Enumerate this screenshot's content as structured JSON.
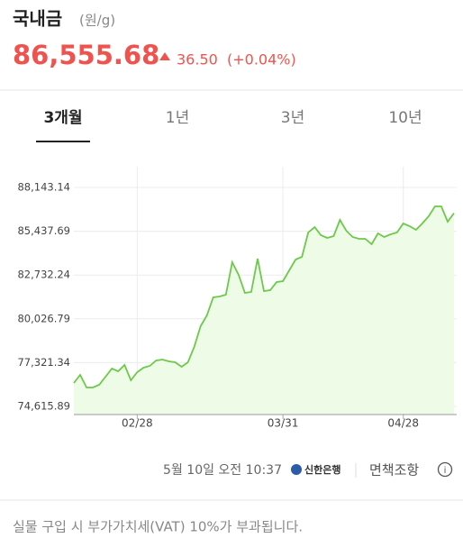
{
  "header": {
    "title": "국내금",
    "unit": "(원/g)",
    "price": "86,555.68",
    "change": "36.50",
    "change_percent": "(+0.04%)"
  },
  "tabs": [
    "3개월",
    "1년",
    "3년",
    "10년"
  ],
  "active_tab": 0,
  "chart_data": {
    "type": "area",
    "color": "#6cc94a",
    "fill": "#eefbe7",
    "categories": [
      null,
      null,
      null,
      null,
      null,
      null,
      null,
      null,
      null,
      null,
      "02/28",
      null,
      null,
      null,
      null,
      null,
      null,
      null,
      null,
      null,
      null,
      null,
      null,
      null,
      null,
      null,
      null,
      null,
      null,
      null,
      null,
      null,
      null,
      "03/31",
      null,
      null,
      null,
      null,
      null,
      null,
      null,
      null,
      null,
      null,
      null,
      null,
      null,
      null,
      null,
      null,
      null,
      null,
      "04/28",
      null,
      null,
      null,
      null,
      null,
      null,
      null,
      null
    ],
    "values": [
      76063,
      76564,
      75784,
      75784,
      75951,
      76452,
      76953,
      76786,
      77176,
      76230,
      76731,
      77009,
      77120,
      77454,
      77510,
      77399,
      77343,
      77065,
      77343,
      78289,
      79570,
      80238,
      81351,
      81407,
      81518,
      83522,
      82743,
      81630,
      81685,
      83745,
      81741,
      81797,
      82298,
      82353,
      83021,
      83689,
      83856,
      85359,
      85694,
      85192,
      85025,
      85137,
      86139,
      85471,
      85081,
      84970,
      84970,
      84636,
      85304,
      85081,
      85248,
      85359,
      85916,
      85749,
      85527,
      85916,
      86362,
      86974,
      86974,
      86028,
      86556
    ],
    "ylim": [
      74115,
      89424
    ],
    "yticks": [
      {
        "value": 74615.89,
        "label": "74,615.89"
      },
      {
        "value": 77321.34,
        "label": "77,321.34"
      },
      {
        "value": 80026.79,
        "label": "80,026.79"
      },
      {
        "value": 82732.24,
        "label": "82,732.24"
      },
      {
        "value": 85437.69,
        "label": "85,437.69"
      },
      {
        "value": 88143.14,
        "label": "88,143.14"
      }
    ],
    "grid": true
  },
  "footer": {
    "timestamp": "5월 10일 오전 10:37",
    "bank": "신한은행",
    "disclaimer": "면책조항",
    "note": "실물 구입 시 부가가치세(VAT) 10%가 부과됩니다."
  }
}
